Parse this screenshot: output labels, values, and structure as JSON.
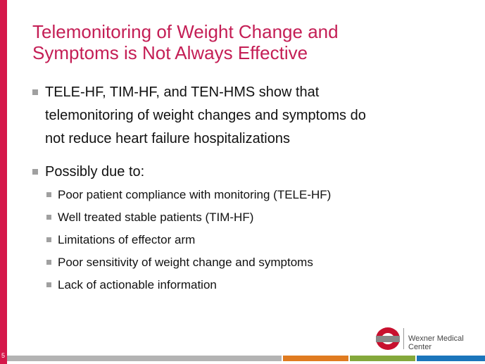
{
  "slide": {
    "title_lines": [
      "Telemonitoring of Weight Change and",
      "Symptoms is Not Always Effective"
    ],
    "bullets": [
      {
        "text": "TELE-HF, TIM-HF, and TEN-HMS show that telemonitoring of weight changes and symptoms do not reduce heart failure hospitalizations",
        "sub": []
      },
      {
        "text": "Possibly due to:",
        "sub": [
          "Poor patient compliance with monitoring (TELE-HF)",
          "Well treated stable patients (TIM-HF)",
          "Limitations of effector arm",
          "Poor sensitivity of weight change and symptoms",
          "Lack of actionable information"
        ]
      }
    ],
    "footer": {
      "organization": "Wexner Medical Center",
      "slide_number": "5"
    }
  }
}
